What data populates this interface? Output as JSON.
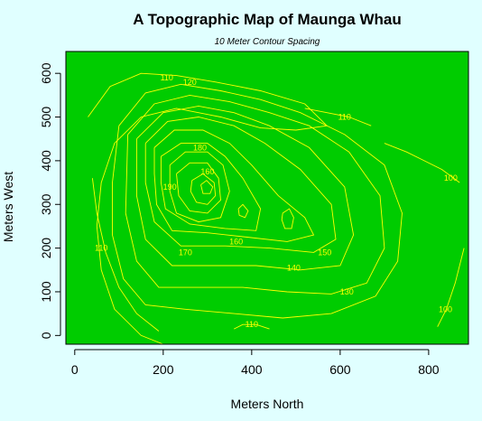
{
  "colors": {
    "page_background": "#e0ffff",
    "plot_fill": "#00cc00",
    "contour_line": "#ffff00",
    "axis": "#000000"
  },
  "chart_data": {
    "type": "contour",
    "title": "A Topographic Map of Maunga Whau",
    "subtitle": "10 Meter Contour Spacing",
    "xlabel": "Meters North",
    "ylabel": "Meters West",
    "xlim": [
      -20,
      890
    ],
    "ylim": [
      -20,
      650
    ],
    "x_ticks": [
      0,
      200,
      400,
      600,
      800
    ],
    "y_ticks": [
      0,
      100,
      200,
      300,
      400,
      500,
      600
    ],
    "grid": false,
    "legend": "none",
    "contour_levels": [
      100,
      110,
      120,
      130,
      140,
      150,
      160,
      170,
      180,
      190
    ],
    "contours": [
      {
        "level": 110,
        "label": "110",
        "label_at": [
          208,
          590
        ],
        "points": [
          [
            30,
            500
          ],
          [
            80,
            570
          ],
          [
            150,
            600
          ],
          [
            230,
            595
          ],
          [
            320,
            580
          ],
          [
            420,
            560
          ],
          [
            520,
            530
          ],
          [
            570,
            480
          ],
          [
            500,
            470
          ],
          [
            420,
            475
          ],
          [
            330,
            500
          ],
          [
            230,
            520
          ],
          [
            150,
            500
          ],
          [
            90,
            440
          ],
          [
            60,
            350
          ],
          [
            50,
            250
          ],
          [
            60,
            150
          ],
          [
            90,
            60
          ],
          [
            150,
            0
          ],
          [
            200,
            -20
          ]
        ]
      },
      {
        "level": 110,
        "label": "110",
        "label_at": [
          60,
          200
        ],
        "points": [
          [
            40,
            360
          ],
          [
            50,
            280
          ],
          [
            70,
            190
          ],
          [
            100,
            110
          ],
          [
            140,
            50
          ],
          [
            190,
            10
          ]
        ]
      },
      {
        "level": 110,
        "label": "110",
        "label_at": [
          610,
          500
        ],
        "points": [
          [
            520,
            520
          ],
          [
            570,
            510
          ],
          [
            620,
            500
          ],
          [
            670,
            480
          ]
        ]
      },
      {
        "level": 100,
        "label": "100",
        "label_at": [
          850,
          360
        ],
        "points": [
          [
            700,
            440
          ],
          [
            750,
            420
          ],
          [
            790,
            400
          ],
          [
            830,
            380
          ],
          [
            870,
            350
          ]
        ]
      },
      {
        "level": 100,
        "label": "100",
        "label_at": [
          838,
          60
        ],
        "points": [
          [
            880,
            200
          ],
          [
            860,
            120
          ],
          [
            840,
            60
          ],
          [
            820,
            20
          ]
        ]
      },
      {
        "level": 120,
        "label": "120",
        "label_at": [
          260,
          580
        ],
        "points": [
          [
            100,
            480
          ],
          [
            160,
            555
          ],
          [
            240,
            575
          ],
          [
            330,
            560
          ],
          [
            420,
            540
          ],
          [
            510,
            510
          ],
          [
            610,
            460
          ],
          [
            700,
            390
          ],
          [
            740,
            280
          ],
          [
            730,
            170
          ],
          [
            680,
            90
          ],
          [
            580,
            50
          ],
          [
            470,
            40
          ],
          [
            360,
            50
          ],
          [
            250,
            60
          ],
          [
            160,
            70
          ],
          [
            110,
            130
          ],
          [
            85,
            230
          ],
          [
            85,
            350
          ],
          [
            100,
            480
          ]
        ]
      },
      {
        "level": 130,
        "label": "130",
        "label_at": [
          615,
          100
        ],
        "points": [
          [
            120,
            460
          ],
          [
            180,
            530
          ],
          [
            260,
            550
          ],
          [
            350,
            535
          ],
          [
            440,
            510
          ],
          [
            530,
            480
          ],
          [
            620,
            420
          ],
          [
            690,
            320
          ],
          [
            700,
            200
          ],
          [
            660,
            120
          ],
          [
            580,
            95
          ],
          [
            480,
            100
          ],
          [
            380,
            110
          ],
          [
            280,
            110
          ],
          [
            190,
            110
          ],
          [
            140,
            170
          ],
          [
            115,
            280
          ],
          [
            120,
            460
          ]
        ]
      },
      {
        "level": 140,
        "label": "140",
        "label_at": [
          495,
          155
        ],
        "points": [
          [
            140,
            450
          ],
          [
            200,
            510
          ],
          [
            280,
            525
          ],
          [
            360,
            510
          ],
          [
            440,
            480
          ],
          [
            530,
            430
          ],
          [
            610,
            340
          ],
          [
            630,
            230
          ],
          [
            600,
            160
          ],
          [
            510,
            150
          ],
          [
            410,
            160
          ],
          [
            310,
            160
          ],
          [
            220,
            160
          ],
          [
            160,
            220
          ],
          [
            140,
            320
          ],
          [
            140,
            450
          ]
        ]
      },
      {
        "level": 150,
        "label": "150",
        "label_at": [
          565,
          190
        ],
        "points": [
          [
            160,
            440
          ],
          [
            210,
            490
          ],
          [
            280,
            500
          ],
          [
            360,
            480
          ],
          [
            430,
            440
          ],
          [
            510,
            380
          ],
          [
            580,
            300
          ],
          [
            590,
            220
          ],
          [
            540,
            190
          ],
          [
            440,
            200
          ],
          [
            340,
            205
          ],
          [
            240,
            205
          ],
          [
            180,
            260
          ],
          [
            160,
            350
          ],
          [
            160,
            440
          ]
        ]
      },
      {
        "level": 160,
        "label": "160",
        "label_at": [
          365,
          215
        ],
        "points": [
          [
            180,
            430
          ],
          [
            225,
            470
          ],
          [
            290,
            470
          ],
          [
            350,
            440
          ],
          [
            400,
            390
          ],
          [
            460,
            320
          ],
          [
            520,
            270
          ],
          [
            540,
            230
          ],
          [
            480,
            215
          ],
          [
            390,
            225
          ],
          [
            300,
            235
          ],
          [
            220,
            240
          ],
          [
            185,
            300
          ],
          [
            180,
            370
          ],
          [
            180,
            430
          ]
        ]
      },
      {
        "level": 170,
        "label": "170",
        "label_at": [
          250,
          190
        ],
        "points": [
          [
            195,
            410
          ],
          [
            240,
            440
          ],
          [
            300,
            440
          ],
          [
            340,
            410
          ],
          [
            380,
            360
          ],
          [
            420,
            290
          ],
          [
            410,
            240
          ],
          [
            340,
            245
          ],
          [
            260,
            255
          ],
          [
            205,
            290
          ],
          [
            195,
            350
          ],
          [
            195,
            410
          ]
        ]
      },
      {
        "level": 180,
        "label": "180",
        "label_at": [
          283,
          430
        ],
        "points": [
          [
            215,
            390
          ],
          [
            250,
            420
          ],
          [
            300,
            420
          ],
          [
            335,
            390
          ],
          [
            350,
            330
          ],
          [
            330,
            270
          ],
          [
            280,
            260
          ],
          [
            230,
            280
          ],
          [
            215,
            330
          ],
          [
            215,
            390
          ]
        ]
      },
      {
        "level": 190,
        "label": "190",
        "label_at": [
          215,
          340
        ],
        "points": [
          [
            230,
            370
          ],
          [
            260,
            395
          ],
          [
            300,
            395
          ],
          [
            325,
            360
          ],
          [
            330,
            310
          ],
          [
            300,
            280
          ],
          [
            260,
            285
          ],
          [
            235,
            320
          ],
          [
            230,
            370
          ]
        ]
      },
      {
        "level": 160,
        "label": "160",
        "label_at": [
          300,
          375
        ],
        "points": [
          [
            265,
            355
          ],
          [
            290,
            370
          ],
          [
            315,
            350
          ],
          [
            318,
            320
          ],
          [
            300,
            300
          ],
          [
            275,
            305
          ],
          [
            262,
            330
          ],
          [
            265,
            355
          ]
        ]
      },
      {
        "level": 180,
        "label": "",
        "label_at": null,
        "points": [
          [
            285,
            345
          ],
          [
            298,
            355
          ],
          [
            312,
            340
          ],
          [
            306,
            325
          ],
          [
            290,
            325
          ],
          [
            285,
            345
          ]
        ]
      },
      {
        "level": 150,
        "label": "",
        "label_at": null,
        "points": [
          [
            370,
            290
          ],
          [
            380,
            300
          ],
          [
            392,
            285
          ],
          [
            385,
            270
          ],
          [
            372,
            275
          ],
          [
            370,
            290
          ]
        ]
      },
      {
        "level": 150,
        "label": "",
        "label_at": null,
        "points": [
          [
            470,
            280
          ],
          [
            485,
            290
          ],
          [
            495,
            270
          ],
          [
            490,
            245
          ],
          [
            475,
            245
          ],
          [
            468,
            265
          ],
          [
            470,
            280
          ]
        ]
      },
      {
        "level": 110,
        "label": "110",
        "label_at": [
          400,
          25
        ],
        "points": [
          [
            360,
            15
          ],
          [
            380,
            25
          ],
          [
            410,
            25
          ],
          [
            440,
            15
          ]
        ]
      }
    ]
  }
}
